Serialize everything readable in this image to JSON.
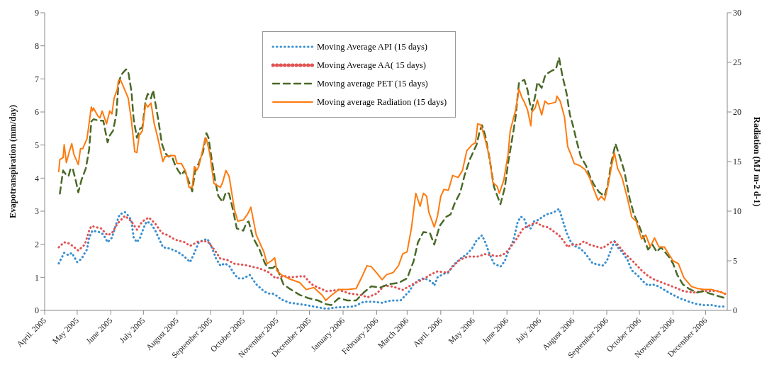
{
  "chart_data": {
    "type": "line",
    "ylabel": "Evapotranspiration  (mm/day)",
    "y2label": "Radiation (MJ  m-2 d-1)",
    "xlim": [
      "2005-04-01",
      "2006-12-21"
    ],
    "xticks": [
      {
        "value": "2005-04-01",
        "label": "April. 2005"
      },
      {
        "value": "2005-05-01",
        "label": "May 2005"
      },
      {
        "value": "2005-06-01",
        "label": "June 2005"
      },
      {
        "value": "2005-07-01",
        "label": "July 2005"
      },
      {
        "value": "2005-08-01",
        "label": "August 2005"
      },
      {
        "value": "2005-09-01",
        "label": "September 2005"
      },
      {
        "value": "2005-10-01",
        "label": "October 2005"
      },
      {
        "value": "2005-11-01",
        "label": "November 2005"
      },
      {
        "value": "2005-12-01",
        "label": "December 2005"
      },
      {
        "value": "2006-01-01",
        "label": "January 2006"
      },
      {
        "value": "2006-02-01",
        "label": "February 2006"
      },
      {
        "value": "2006-03-01",
        "label": "March 2006"
      },
      {
        "value": "2006-04-01",
        "label": "April. 2006"
      },
      {
        "value": "2006-05-01",
        "label": "May 2006"
      },
      {
        "value": "2006-06-01",
        "label": "June 2006"
      },
      {
        "value": "2006-07-01",
        "label": "July 2006"
      },
      {
        "value": "2006-08-01",
        "label": "August 2006"
      },
      {
        "value": "2006-09-01",
        "label": "September 2006"
      },
      {
        "value": "2006-10-01",
        "label": "October 2006"
      },
      {
        "value": "2006-11-01",
        "label": "November 2006"
      },
      {
        "value": "2006-12-01",
        "label": "December 2006"
      }
    ],
    "ylim": [
      0,
      9
    ],
    "yticks": [
      0,
      1,
      2,
      3,
      4,
      5,
      6,
      7,
      8,
      9
    ],
    "y2lim": [
      0,
      30
    ],
    "y2ticks": [
      0,
      5,
      10,
      15,
      20,
      25,
      30
    ],
    "grid": false,
    "legend": "top",
    "series": [
      {
        "name": "Moving Average API (15 days)",
        "color": "#3a8fd0",
        "line_style": "dotted",
        "x": [
          "2005-04-14",
          "2005-04-19",
          "2005-04-23",
          "2005-04-26",
          "2005-05-01",
          "2005-05-05",
          "2005-05-08",
          "2005-05-10",
          "2005-05-12",
          "2005-05-15",
          "2005-05-21",
          "2005-05-25",
          "2005-05-29",
          "2005-06-02",
          "2005-06-06",
          "2005-06-09",
          "2005-06-14",
          "2005-06-18",
          "2005-06-20",
          "2005-06-22",
          "2005-06-25",
          "2005-06-28",
          "2005-07-01",
          "2005-07-04",
          "2005-07-08",
          "2005-07-12",
          "2005-07-15",
          "2005-07-19",
          "2005-07-24",
          "2005-07-30",
          "2005-08-05",
          "2005-08-10",
          "2005-08-13",
          "2005-08-17",
          "2005-08-21",
          "2005-08-26",
          "2005-08-29",
          "2005-09-02",
          "2005-09-06",
          "2005-09-10",
          "2005-09-14",
          "2005-09-18",
          "2005-09-22",
          "2005-09-26",
          "2005-10-01",
          "2005-10-07",
          "2005-10-13",
          "2005-10-20",
          "2005-10-24",
          "2005-10-28",
          "2005-11-01",
          "2005-11-05",
          "2005-11-13",
          "2005-11-28",
          "2005-12-09",
          "2005-12-17",
          "2005-12-26",
          "2006-01-03",
          "2006-01-11",
          "2006-01-20",
          "2006-01-29",
          "2006-02-06",
          "2006-02-14",
          "2006-02-23",
          "2006-02-27",
          "2006-03-03",
          "2006-03-07",
          "2006-03-11",
          "2006-03-16",
          "2006-03-20",
          "2006-03-24",
          "2006-03-26",
          "2006-03-29",
          "2006-04-04",
          "2006-04-08",
          "2006-04-12",
          "2006-04-19",
          "2006-04-25",
          "2006-04-30",
          "2006-05-04",
          "2006-05-09",
          "2006-05-12",
          "2006-05-16",
          "2006-05-20",
          "2006-05-26",
          "2006-05-30",
          "2006-06-02",
          "2006-06-07",
          "2006-06-11",
          "2006-06-14",
          "2006-06-17",
          "2006-06-20",
          "2006-06-23",
          "2006-06-26",
          "2006-06-29",
          "2006-07-04",
          "2006-07-07",
          "2006-07-11",
          "2006-07-16",
          "2006-07-19",
          "2006-07-22",
          "2006-07-26",
          "2006-07-29",
          "2006-08-02",
          "2006-08-07",
          "2006-08-11",
          "2006-08-15",
          "2006-08-19",
          "2006-08-24",
          "2006-08-28",
          "2006-09-01",
          "2006-09-05",
          "2006-09-08",
          "2006-09-11",
          "2006-09-15",
          "2006-09-20",
          "2006-09-24",
          "2006-09-30",
          "2006-10-05",
          "2006-10-09",
          "2006-10-13",
          "2006-10-19",
          "2006-10-26",
          "2006-11-01",
          "2006-11-07",
          "2006-11-16",
          "2006-11-23",
          "2006-11-29",
          "2006-12-07",
          "2006-12-13",
          "2006-12-19"
        ],
        "values": [
          1.42,
          1.74,
          1.67,
          1.74,
          1.46,
          1.56,
          1.74,
          1.84,
          2.2,
          2.41,
          2.37,
          2.3,
          2.06,
          2.2,
          2.62,
          2.9,
          2.97,
          2.83,
          2.69,
          2.2,
          2.06,
          2.2,
          2.48,
          2.69,
          2.62,
          2.41,
          2.2,
          1.91,
          1.88,
          1.81,
          1.7,
          1.56,
          1.46,
          1.74,
          2.06,
          2.13,
          2.16,
          1.91,
          1.56,
          1.35,
          1.42,
          1.35,
          1.14,
          0.97,
          0.97,
          1.07,
          0.79,
          0.58,
          0.51,
          0.51,
          0.44,
          0.33,
          0.23,
          0.16,
          0.09,
          0.05,
          0.09,
          0.1,
          0.12,
          0.26,
          0.26,
          0.23,
          0.3,
          0.3,
          0.44,
          0.58,
          0.79,
          0.9,
          0.97,
          0.93,
          0.86,
          0.75,
          1.0,
          1.11,
          1.14,
          1.35,
          1.56,
          1.7,
          1.88,
          2.12,
          2.27,
          2.06,
          1.7,
          1.42,
          1.32,
          1.49,
          1.77,
          2.12,
          2.69,
          2.83,
          2.76,
          2.51,
          2.48,
          2.69,
          2.72,
          2.83,
          2.9,
          2.93,
          3.0,
          3.07,
          2.76,
          2.34,
          2.12,
          1.95,
          1.88,
          1.77,
          1.6,
          1.42,
          1.39,
          1.35,
          1.49,
          1.84,
          2.09,
          1.91,
          1.77,
          1.53,
          1.21,
          1.04,
          0.86,
          0.75,
          0.79,
          0.72,
          0.58,
          0.47,
          0.37,
          0.26,
          0.19,
          0.16,
          0.16,
          0.12,
          0.12
        ]
      },
      {
        "name": "Moving Average AA( 15 days)",
        "color": "#e05252",
        "line_style": "dotted",
        "x": [
          "2005-04-14",
          "2005-04-19",
          "2005-04-24",
          "2005-05-02",
          "2005-05-08",
          "2005-05-12",
          "2005-05-14",
          "2005-05-23",
          "2005-05-29",
          "2005-06-02",
          "2005-06-07",
          "2005-06-14",
          "2005-06-20",
          "2005-06-25",
          "2005-06-30",
          "2005-07-06",
          "2005-07-12",
          "2005-07-18",
          "2005-07-23",
          "2005-07-30",
          "2005-08-08",
          "2005-08-13",
          "2005-08-21",
          "2005-08-29",
          "2005-09-05",
          "2005-09-10",
          "2005-09-16",
          "2005-09-23",
          "2005-10-03",
          "2005-10-09",
          "2005-10-16",
          "2005-10-24",
          "2005-10-31",
          "2005-11-08",
          "2005-11-13",
          "2005-11-26",
          "2005-12-03",
          "2005-12-09",
          "2005-12-17",
          "2005-12-28",
          "2006-01-07",
          "2006-01-16",
          "2006-01-24",
          "2006-02-01",
          "2006-02-08",
          "2006-02-16",
          "2006-02-25",
          "2006-03-06",
          "2006-03-15",
          "2006-03-22",
          "2006-03-29",
          "2006-04-07",
          "2006-04-17",
          "2006-04-23",
          "2006-04-28",
          "2006-05-05",
          "2006-05-12",
          "2006-05-18",
          "2006-05-24",
          "2006-05-29",
          "2006-06-02",
          "2006-06-09",
          "2006-06-16",
          "2006-06-25",
          "2006-06-29",
          "2006-07-03",
          "2006-07-09",
          "2006-07-16",
          "2006-07-19",
          "2006-07-25",
          "2006-07-27",
          "2006-07-30",
          "2006-08-07",
          "2006-08-11",
          "2006-08-16",
          "2006-08-20",
          "2006-08-28",
          "2006-09-05",
          "2006-09-09",
          "2006-09-13",
          "2006-09-17",
          "2006-09-25",
          "2006-10-03",
          "2006-10-09",
          "2006-10-15",
          "2006-10-26",
          "2006-11-03",
          "2006-11-11",
          "2006-11-20",
          "2006-11-29",
          "2006-12-07",
          "2006-12-13",
          "2006-12-19"
        ],
        "values": [
          1.91,
          2.06,
          2.02,
          1.81,
          1.99,
          2.41,
          2.55,
          2.48,
          2.27,
          2.34,
          2.62,
          2.86,
          2.69,
          2.44,
          2.69,
          2.81,
          2.62,
          2.34,
          2.28,
          2.14,
          2.06,
          1.95,
          2.09,
          2.09,
          1.81,
          1.56,
          1.53,
          1.41,
          1.37,
          1.32,
          1.27,
          1.16,
          0.97,
          1.04,
          1.0,
          1.04,
          0.79,
          0.69,
          0.58,
          0.62,
          0.51,
          0.47,
          0.4,
          0.51,
          0.75,
          0.72,
          0.62,
          0.79,
          0.93,
          1.07,
          1.18,
          1.14,
          1.49,
          1.6,
          1.63,
          1.63,
          1.7,
          1.67,
          1.63,
          1.7,
          1.81,
          2.12,
          2.48,
          2.62,
          2.65,
          2.55,
          2.51,
          2.34,
          2.27,
          2.02,
          1.91,
          1.99,
          1.99,
          2.09,
          1.99,
          1.95,
          1.88,
          2.06,
          2.07,
          1.91,
          1.74,
          1.49,
          1.21,
          1.04,
          0.93,
          0.79,
          0.69,
          0.58,
          0.54,
          0.59,
          0.59,
          0.58,
          0.5
        ]
      },
      {
        "name": "Moving average PET (15 days)",
        "color": "#4a6a28",
        "line_style": "dashed",
        "x": [
          "2005-04-15",
          "2005-04-18",
          "2005-04-21",
          "2005-04-23",
          "2005-04-25",
          "2005-04-27",
          "2005-04-30",
          "2005-05-02",
          "2005-05-05",
          "2005-05-09",
          "2005-05-12",
          "2005-05-14",
          "2005-05-16",
          "2005-05-21",
          "2005-05-25",
          "2005-05-29",
          "2005-05-31",
          "2005-06-03",
          "2005-06-06",
          "2005-06-08",
          "2005-06-10",
          "2005-06-12",
          "2005-06-15",
          "2005-06-17",
          "2005-06-20",
          "2005-06-22",
          "2005-06-25",
          "2005-06-28",
          "2005-06-30",
          "2005-07-03",
          "2005-07-05",
          "2005-07-08",
          "2005-07-10",
          "2005-07-12",
          "2005-07-15",
          "2005-07-18",
          "2005-07-21",
          "2005-07-24",
          "2005-07-27",
          "2005-07-30",
          "2005-08-02",
          "2005-08-05",
          "2005-08-08",
          "2005-08-12",
          "2005-08-15",
          "2005-08-18",
          "2005-08-21",
          "2005-08-25",
          "2005-08-28",
          "2005-08-30",
          "2005-09-02",
          "2005-09-05",
          "2005-09-08",
          "2005-09-12",
          "2005-09-15",
          "2005-09-18",
          "2005-09-22",
          "2005-09-25",
          "2005-10-01",
          "2005-10-04",
          "2005-10-06",
          "2005-10-10",
          "2005-10-16",
          "2005-10-21",
          "2005-10-24",
          "2005-10-28",
          "2005-10-31",
          "2005-11-04",
          "2005-11-07",
          "2005-11-13",
          "2005-11-22",
          "2005-11-30",
          "2005-12-09",
          "2005-12-16",
          "2005-12-21",
          "2005-12-28",
          "2006-01-05",
          "2006-01-13",
          "2006-01-20",
          "2006-01-27",
          "2006-02-04",
          "2006-02-12",
          "2006-02-21",
          "2006-03-01",
          "2006-03-07",
          "2006-03-11",
          "2006-03-16",
          "2006-03-22",
          "2006-03-26",
          "2006-03-31",
          "2006-04-06",
          "2006-04-10",
          "2006-04-14",
          "2006-04-19",
          "2006-04-23",
          "2006-04-28",
          "2006-05-04",
          "2006-05-07",
          "2006-05-09",
          "2006-05-12",
          "2006-05-16",
          "2006-05-20",
          "2006-05-26",
          "2006-05-30",
          "2006-06-02",
          "2006-06-07",
          "2006-06-09",
          "2006-06-12",
          "2006-06-15",
          "2006-06-17",
          "2006-06-18",
          "2006-06-20",
          "2006-06-22",
          "2006-06-24",
          "2006-06-27",
          "2006-06-29",
          "2006-07-03",
          "2006-07-06",
          "2006-07-09",
          "2006-07-13",
          "2006-07-16",
          "2006-07-19",
          "2006-07-22",
          "2006-07-26",
          "2006-07-29",
          "2006-08-01",
          "2006-08-04",
          "2006-08-08",
          "2006-08-13",
          "2006-08-16",
          "2006-08-20",
          "2006-08-25",
          "2006-08-30",
          "2006-09-02",
          "2006-09-05",
          "2006-09-09",
          "2006-09-13",
          "2006-09-17",
          "2006-09-22",
          "2006-09-26",
          "2006-09-30",
          "2006-10-05",
          "2006-10-09",
          "2006-10-13",
          "2006-10-17",
          "2006-10-21",
          "2006-10-28",
          "2006-11-01",
          "2006-11-05",
          "2006-11-10",
          "2006-11-16",
          "2006-11-23",
          "2006-11-29",
          "2006-12-05",
          "2006-12-12",
          "2006-12-19"
        ],
        "values": [
          3.53,
          4.23,
          4.09,
          4.06,
          4.3,
          4.27,
          3.88,
          3.57,
          3.95,
          4.3,
          4.87,
          5.71,
          5.78,
          5.74,
          5.74,
          5.08,
          5.29,
          5.43,
          5.92,
          6.83,
          7.08,
          7.18,
          7.29,
          7.22,
          6.62,
          5.78,
          5.22,
          5.5,
          5.53,
          6.34,
          6.55,
          6.41,
          6.66,
          6.27,
          5.71,
          5.04,
          4.76,
          4.65,
          4.69,
          4.41,
          4.23,
          4.09,
          4.23,
          3.88,
          3.6,
          4.3,
          4.44,
          4.8,
          5.36,
          5.22,
          4.55,
          3.95,
          3.46,
          3.28,
          3.57,
          3.53,
          2.97,
          2.48,
          2.41,
          2.65,
          2.69,
          2.2,
          1.84,
          1.42,
          1.28,
          1.28,
          1.35,
          1.04,
          0.79,
          0.65,
          0.47,
          0.37,
          0.3,
          0.19,
          0.16,
          0.37,
          0.3,
          0.3,
          0.54,
          0.73,
          0.69,
          0.79,
          0.83,
          0.97,
          1.49,
          2.06,
          2.37,
          2.34,
          1.99,
          2.55,
          2.83,
          2.9,
          3.25,
          3.57,
          4.09,
          4.58,
          5.01,
          5.43,
          5.6,
          5.29,
          4.58,
          3.74,
          3.21,
          3.71,
          4.44,
          5.43,
          5.85,
          6.87,
          6.94,
          6.97,
          6.87,
          6.66,
          6.27,
          6.06,
          6.48,
          6.9,
          6.73,
          7.08,
          7.18,
          7.26,
          7.29,
          7.64,
          7.11,
          6.55,
          5.92,
          5.57,
          5.15,
          4.65,
          4.37,
          4.09,
          3.81,
          3.57,
          3.46,
          3.81,
          4.44,
          5.04,
          4.65,
          4.23,
          3.39,
          2.9,
          2.62,
          2.2,
          1.84,
          1.99,
          1.77,
          1.91,
          1.63,
          1.42,
          1.07,
          0.79,
          0.65,
          0.54,
          0.58,
          0.51,
          0.44,
          0.37
        ]
      },
      {
        "name": "Moving average Radiation (15 days)",
        "color": "#ff7a0e",
        "line_style": "solid",
        "axis": "y2",
        "x": [
          "2005-04-14",
          "2005-04-15",
          "2005-04-18",
          "2005-04-19",
          "2005-04-21",
          "2005-04-24",
          "2005-04-26",
          "2005-04-28",
          "2005-05-02",
          "2005-05-04",
          "2005-05-06",
          "2005-05-10",
          "2005-05-14",
          "2005-05-15",
          "2005-05-16",
          "2005-05-20",
          "2005-05-22",
          "2005-05-24",
          "2005-05-28",
          "2005-05-31",
          "2005-06-02",
          "2005-06-04",
          "2005-06-07",
          "2005-06-08",
          "2005-06-10",
          "2005-06-12",
          "2005-06-17",
          "2005-06-20",
          "2005-06-23",
          "2005-06-25",
          "2005-06-27",
          "2005-06-30",
          "2005-07-03",
          "2005-07-05",
          "2005-07-08",
          "2005-07-11",
          "2005-07-14",
          "2005-07-19",
          "2005-07-21",
          "2005-07-27",
          "2005-07-30",
          "2005-08-01",
          "2005-08-05",
          "2005-08-09",
          "2005-08-12",
          "2005-08-15",
          "2005-08-17",
          "2005-08-19",
          "2005-08-21",
          "2005-08-24",
          "2005-08-27",
          "2005-08-28",
          "2005-08-31",
          "2005-09-04",
          "2005-09-10",
          "2005-09-12",
          "2005-09-15",
          "2005-09-18",
          "2005-09-23",
          "2005-09-26",
          "2005-10-01",
          "2005-10-05",
          "2005-10-08",
          "2005-10-13",
          "2005-10-20",
          "2005-10-23",
          "2005-10-27",
          "2005-10-30",
          "2005-11-01",
          "2005-11-05",
          "2005-11-12",
          "2005-11-22",
          "2005-11-28",
          "2005-12-05",
          "2005-12-13",
          "2005-12-16",
          "2005-12-21",
          "2005-12-28",
          "2006-01-05",
          "2006-01-13",
          "2006-01-18",
          "2006-01-23",
          "2006-01-27",
          "2006-01-31",
          "2006-02-06",
          "2006-02-10",
          "2006-02-16",
          "2006-02-21",
          "2006-02-25",
          "2006-03-01",
          "2006-03-05",
          "2006-03-09",
          "2006-03-13",
          "2006-03-16",
          "2006-03-19",
          "2006-03-21",
          "2006-03-26",
          "2006-03-29",
          "2006-04-01",
          "2006-04-04",
          "2006-04-08",
          "2006-04-12",
          "2006-04-17",
          "2006-04-21",
          "2006-04-25",
          "2006-04-30",
          "2006-05-03",
          "2006-05-05",
          "2006-05-08",
          "2006-05-12",
          "2006-05-16",
          "2006-05-19",
          "2006-05-23",
          "2006-05-25",
          "2006-05-29",
          "2006-06-02",
          "2006-06-04",
          "2006-06-09",
          "2006-06-12",
          "2006-06-15",
          "2006-06-17",
          "2006-06-20",
          "2006-06-23",
          "2006-06-24",
          "2006-06-27",
          "2006-06-29",
          "2006-07-03",
          "2006-07-06",
          "2006-07-09",
          "2006-07-13",
          "2006-07-16",
          "2006-07-17",
          "2006-07-20",
          "2006-07-24",
          "2006-07-27",
          "2006-07-30",
          "2006-08-02",
          "2006-08-07",
          "2006-08-12",
          "2006-08-16",
          "2006-08-20",
          "2006-08-24",
          "2006-08-27",
          "2006-08-30",
          "2006-09-02",
          "2006-09-05",
          "2006-09-08",
          "2006-09-11",
          "2006-09-15",
          "2006-09-20",
          "2006-09-24",
          "2006-09-28",
          "2006-10-03",
          "2006-10-07",
          "2006-10-11",
          "2006-10-15",
          "2006-10-19",
          "2006-10-24",
          "2006-10-28",
          "2006-11-01",
          "2006-11-06",
          "2006-11-11",
          "2006-11-18",
          "2006-11-24",
          "2006-11-30",
          "2006-12-07",
          "2006-12-13",
          "2006-12-19"
        ],
        "values": [
          14.0,
          15.2,
          15.4,
          16.7,
          14.9,
          16.1,
          16.8,
          15.7,
          14.7,
          16.3,
          16.3,
          17.3,
          20.5,
          20.1,
          20.4,
          19.6,
          19.4,
          20.1,
          18.8,
          20.1,
          19.8,
          21.4,
          22.3,
          23.2,
          23.2,
          22.7,
          21.4,
          19.1,
          16.0,
          15.9,
          17.6,
          18.1,
          20.8,
          20.5,
          20.9,
          18.8,
          17.5,
          15.0,
          15.5,
          15.6,
          15.6,
          14.8,
          14.8,
          14.0,
          12.4,
          12.4,
          14.5,
          14.1,
          14.5,
          15.9,
          17.4,
          17.3,
          15.9,
          12.8,
          12.4,
          12.9,
          14.1,
          13.5,
          10.1,
          9.0,
          9.1,
          9.7,
          10.4,
          7.6,
          5.9,
          4.7,
          5.0,
          5.3,
          4.0,
          3.6,
          3.2,
          2.8,
          2.1,
          2.3,
          1.5,
          1.0,
          1.5,
          2.1,
          2.1,
          2.2,
          3.3,
          4.5,
          4.4,
          3.9,
          3.1,
          3.6,
          3.8,
          4.5,
          5.7,
          5.9,
          8.3,
          11.8,
          10.5,
          11.8,
          11.5,
          9.9,
          8.4,
          9.5,
          11.5,
          12.2,
          12.1,
          13.6,
          13.4,
          14.1,
          16.1,
          16.7,
          16.9,
          18.8,
          18.7,
          17.2,
          15.4,
          12.9,
          12.5,
          11.8,
          13.1,
          15.7,
          18.1,
          20.2,
          22.3,
          21.4,
          21.0,
          20.2,
          18.6,
          20.0,
          20.4,
          21.2,
          19.7,
          21.1,
          20.8,
          20.9,
          21.0,
          21.6,
          21.1,
          19.5,
          16.5,
          15.7,
          14.8,
          14.6,
          14.2,
          13.4,
          12.2,
          11.1,
          11.5,
          11.1,
          12.5,
          14.3,
          15.9,
          14.3,
          13.4,
          11.3,
          9.4,
          9.0,
          7.2,
          7.6,
          6.4,
          7.3,
          6.4,
          6.4,
          5.7,
          5.0,
          4.7,
          3.3,
          2.4,
          2.2,
          2.1,
          2.1,
          1.9,
          1.7
        ]
      }
    ]
  }
}
